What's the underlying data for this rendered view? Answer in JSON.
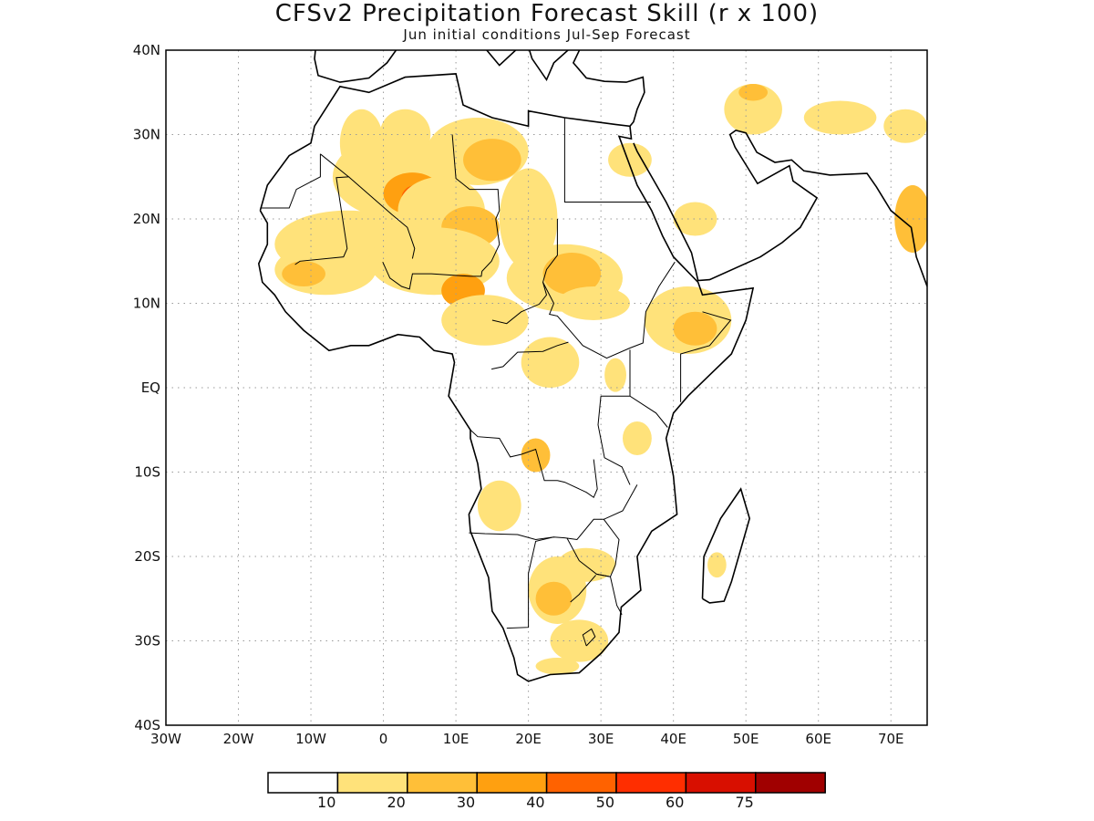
{
  "title": "CFSv2 Precipitation Forecast Skill (r x 100)",
  "subtitle": "Jun initial conditions  Jul-Sep Forecast",
  "map": {
    "lon_range": [
      -30,
      75
    ],
    "lat_range": [
      -40,
      40
    ],
    "grid": true,
    "lat_labels": [
      {
        "lat": 40,
        "text": "40N"
      },
      {
        "lat": 30,
        "text": "30N"
      },
      {
        "lat": 20,
        "text": "20N"
      },
      {
        "lat": 10,
        "text": "10N"
      },
      {
        "lat": 0,
        "text": "EQ"
      },
      {
        "lat": -10,
        "text": "10S"
      },
      {
        "lat": -20,
        "text": "20S"
      },
      {
        "lat": -30,
        "text": "30S"
      },
      {
        "lat": -40,
        "text": "40S"
      }
    ],
    "lon_labels": [
      {
        "lon": -30,
        "text": "30W"
      },
      {
        "lon": -20,
        "text": "20W"
      },
      {
        "lon": -10,
        "text": "10W"
      },
      {
        "lon": 0,
        "text": "0"
      },
      {
        "lon": 10,
        "text": "10E"
      },
      {
        "lon": 20,
        "text": "20E"
      },
      {
        "lon": 30,
        "text": "30E"
      },
      {
        "lon": 40,
        "text": "40E"
      },
      {
        "lon": 50,
        "text": "50E"
      },
      {
        "lon": 60,
        "text": "60E"
      },
      {
        "lon": 70,
        "text": "70E"
      }
    ]
  },
  "colorbar": {
    "colors": [
      "#ffffff",
      "#ffe27a",
      "#ffbf38",
      "#ffa010",
      "#ff6200",
      "#ff2e00",
      "#d80f00",
      "#a00000"
    ],
    "labels": [
      "10",
      "20",
      "30",
      "40",
      "50",
      "60",
      "75"
    ]
  },
  "skill_regions": [
    {
      "lon": 3,
      "lat": 30,
      "rlon": 3.5,
      "rlat": 3,
      "level": 1
    },
    {
      "lon": -3,
      "lat": 29,
      "rlon": 3,
      "rlat": 4,
      "level": 1
    },
    {
      "lon": 2,
      "lat": 25,
      "rlon": 9,
      "rlat": 5,
      "level": 1
    },
    {
      "lon": 4,
      "lat": 23,
      "rlon": 4,
      "rlat": 2.5,
      "level": 3
    },
    {
      "lon": 4.5,
      "lat": 22.5,
      "rlon": 2,
      "rlat": 1.5,
      "level": 4
    },
    {
      "lon": 13,
      "lat": 28,
      "rlon": 7,
      "rlat": 4,
      "level": 1
    },
    {
      "lon": 15,
      "lat": 27,
      "rlon": 4,
      "rlat": 2.5,
      "level": 2
    },
    {
      "lon": 8,
      "lat": 21,
      "rlon": 6,
      "rlat": 4,
      "level": 1
    },
    {
      "lon": 12,
      "lat": 19,
      "rlon": 4,
      "rlat": 2.5,
      "level": 2
    },
    {
      "lon": -5,
      "lat": 17,
      "rlon": 10,
      "rlat": 4,
      "level": 1
    },
    {
      "lon": -8,
      "lat": 14,
      "rlon": 7,
      "rlat": 3,
      "level": 1
    },
    {
      "lon": -11,
      "lat": 13.5,
      "rlon": 3,
      "rlat": 1.5,
      "level": 2
    },
    {
      "lon": 7,
      "lat": 15,
      "rlon": 9,
      "rlat": 4,
      "level": 1
    },
    {
      "lon": 11,
      "lat": 11.5,
      "rlon": 3,
      "rlat": 2,
      "level": 3
    },
    {
      "lon": 14,
      "lat": 8,
      "rlon": 6,
      "rlat": 3,
      "level": 1
    },
    {
      "lon": 20,
      "lat": 20,
      "rlon": 4,
      "rlat": 6,
      "level": 1
    },
    {
      "lon": 25,
      "lat": 13,
      "rlon": 8,
      "rlat": 4,
      "level": 1
    },
    {
      "lon": 26,
      "lat": 13.5,
      "rlon": 4,
      "rlat": 2.5,
      "level": 2
    },
    {
      "lon": 29,
      "lat": 10,
      "rlon": 5,
      "rlat": 2,
      "level": 1
    },
    {
      "lon": 42,
      "lat": 8,
      "rlon": 6,
      "rlat": 4,
      "level": 1
    },
    {
      "lon": 43,
      "lat": 7,
      "rlon": 3,
      "rlat": 2,
      "level": 2
    },
    {
      "lon": 23,
      "lat": 3,
      "rlon": 4,
      "rlat": 3,
      "level": 1
    },
    {
      "lon": 32,
      "lat": 1.5,
      "rlon": 1.5,
      "rlat": 2,
      "level": 1
    },
    {
      "lon": 21,
      "lat": -8,
      "rlon": 2,
      "rlat": 2,
      "level": 2
    },
    {
      "lon": 16,
      "lat": -14,
      "rlon": 3,
      "rlat": 3,
      "level": 1
    },
    {
      "lon": 24,
      "lat": -24,
      "rlon": 4,
      "rlat": 4,
      "level": 1
    },
    {
      "lon": 23.5,
      "lat": -25,
      "rlon": 2.5,
      "rlat": 2,
      "level": 2
    },
    {
      "lon": 28,
      "lat": -21,
      "rlon": 4,
      "rlat": 2,
      "level": 1
    },
    {
      "lon": 27,
      "lat": -30,
      "rlon": 4,
      "rlat": 2.5,
      "level": 1
    },
    {
      "lon": 24,
      "lat": -33,
      "rlon": 3,
      "rlat": 1,
      "level": 1
    },
    {
      "lon": 46,
      "lat": -21,
      "rlon": 1.3,
      "rlat": 1.5,
      "level": 1
    },
    {
      "lon": 51,
      "lat": 33,
      "rlon": 4,
      "rlat": 3,
      "level": 1
    },
    {
      "lon": 51,
      "lat": 35,
      "rlon": 2,
      "rlat": 1,
      "level": 2
    },
    {
      "lon": 63,
      "lat": 32,
      "rlon": 5,
      "rlat": 2,
      "level": 1
    },
    {
      "lon": 72,
      "lat": 31,
      "rlon": 3,
      "rlat": 2,
      "level": 1
    },
    {
      "lon": 43,
      "lat": 20,
      "rlon": 3,
      "rlat": 2,
      "level": 1
    },
    {
      "lon": 73,
      "lat": 20,
      "rlon": 2.5,
      "rlat": 4,
      "level": 2
    },
    {
      "lon": 34,
      "lat": 27,
      "rlon": 3,
      "rlat": 2,
      "level": 1
    },
    {
      "lon": 35,
      "lat": -6,
      "rlon": 2,
      "rlat": 2,
      "level": 1
    }
  ]
}
